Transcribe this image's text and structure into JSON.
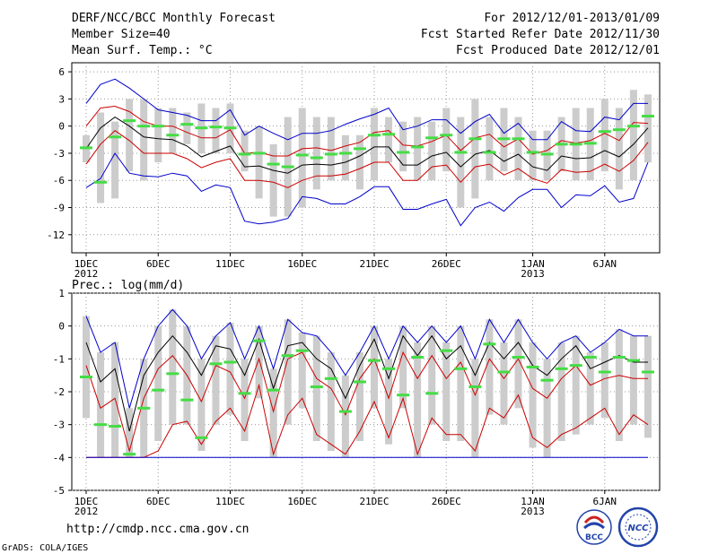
{
  "header": {
    "title": "DERF/NCC/BCC Monthly Forecast",
    "member_size": "Member Size=40",
    "variable": "Mean Surf. Temp.: °C",
    "period": "For 2012/12/01-2013/01/09",
    "start_ref": "Fcst Started Refer Date 2012/11/30",
    "produced": "Fcst Produced Date 2012/12/01"
  },
  "footer": {
    "url": "http://cmdp.ncc.cma.gov.cn",
    "grads": "GrADS: COLA/IGES",
    "logo_bcc": "BCC",
    "logo_ncc": "NCC"
  },
  "x_axis": {
    "ticks": [
      {
        "day": 1,
        "label": "1DEC",
        "sub": "2012"
      },
      {
        "day": 6,
        "label": "6DEC",
        "sub": ""
      },
      {
        "day": 11,
        "label": "11DEC",
        "sub": ""
      },
      {
        "day": 16,
        "label": "16DEC",
        "sub": ""
      },
      {
        "day": 21,
        "label": "21DEC",
        "sub": ""
      },
      {
        "day": 26,
        "label": "26DEC",
        "sub": ""
      },
      {
        "day": 32,
        "label": "1JAN",
        "sub": "2013"
      },
      {
        "day": 37,
        "label": "6JAN",
        "sub": ""
      }
    ]
  },
  "chart_data": [
    {
      "type": "line",
      "title": "Mean Surf. Temp.: °C",
      "ylabel": "°C",
      "ylim": [
        -14,
        7
      ],
      "yticks": [
        6,
        3,
        0,
        -3,
        -6,
        -9,
        -12
      ],
      "grid": true,
      "x": [
        1,
        2,
        3,
        4,
        5,
        6,
        7,
        8,
        9,
        10,
        11,
        12,
        13,
        14,
        15,
        16,
        17,
        18,
        19,
        20,
        21,
        22,
        23,
        24,
        25,
        26,
        27,
        28,
        29,
        30,
        31,
        32,
        33,
        34,
        35,
        36,
        37,
        38,
        39,
        40
      ],
      "series": [
        {
          "name": "ensemble max",
          "color": "#0000cc",
          "values": [
            2.5,
            4.6,
            5.2,
            4.2,
            3,
            1.8,
            1.5,
            1.2,
            0.6,
            0.6,
            1.8,
            -1,
            0,
            -0.8,
            -1.5,
            -0.8,
            -0.8,
            -0.5,
            0.2,
            0.8,
            1.3,
            2,
            -0.4,
            0,
            0.7,
            0.7,
            -0.8,
            0.5,
            1.3,
            -0.8,
            0.3,
            -1.5,
            -1.5,
            0.5,
            -0.5,
            -0.6,
            1,
            0.7,
            2.5,
            2.5
          ]
        },
        {
          "name": "upper spread",
          "color": "#cc0000",
          "values": [
            0,
            2,
            2.2,
            1.6,
            0.5,
            0,
            0,
            -0.7,
            -1.3,
            -1.3,
            -0.4,
            -3,
            -2.9,
            -3.3,
            -3.3,
            -2.5,
            -2.4,
            -2.7,
            -2.2,
            -1.8,
            -0.7,
            -0.5,
            -2.1,
            -2.2,
            -1.7,
            -1,
            -2.7,
            -1.3,
            -0.9,
            -2.3,
            -1.4,
            -3.1,
            -2.7,
            -1.6,
            -1.9,
            -1.6,
            -0.8,
            -1.6,
            0.4,
            0.3
          ]
        },
        {
          "name": "ensemble mean",
          "color": "#000000",
          "values": [
            -2.5,
            -0.2,
            1,
            0,
            -1.2,
            -1.4,
            -1.5,
            -2.2,
            -3.4,
            -2.8,
            -2.2,
            -4.5,
            -4.4,
            -4.9,
            -5.2,
            -4.3,
            -4.2,
            -4.3,
            -4,
            -3.3,
            -2.3,
            -2.3,
            -4.3,
            -4.3,
            -3.3,
            -2.9,
            -4.5,
            -3.1,
            -2.7,
            -3.9,
            -3.1,
            -4.5,
            -4.9,
            -3.3,
            -3.6,
            -3.5,
            -2.7,
            -3.4,
            -2,
            -0.2
          ]
        },
        {
          "name": "lower spread",
          "color": "#cc0000",
          "values": [
            -4.2,
            -2,
            -0.5,
            -1.6,
            -3,
            -3,
            -3,
            -3.6,
            -4.6,
            -4,
            -3.6,
            -6,
            -6,
            -6.2,
            -6.8,
            -6,
            -5.5,
            -5.5,
            -5.3,
            -4.7,
            -4,
            -4,
            -6,
            -6,
            -4.5,
            -4.3,
            -6.2,
            -4.5,
            -4.2,
            -5.4,
            -4.7,
            -5.8,
            -6.3,
            -4.8,
            -5.1,
            -5,
            -4.2,
            -5,
            -3.8,
            -1.8
          ]
        },
        {
          "name": "ensemble min",
          "color": "#0000cc",
          "values": [
            -6.8,
            -5.8,
            -3,
            -5.2,
            -5.5,
            -5.6,
            -5.2,
            -5.5,
            -7.2,
            -6.5,
            -6.8,
            -10.5,
            -10.8,
            -10.6,
            -10.2,
            -7.8,
            -8,
            -8.6,
            -8.6,
            -7.8,
            -6.7,
            -6.7,
            -9.2,
            -9.2,
            -8.6,
            -8.1,
            -11,
            -9,
            -8.4,
            -9.4,
            -7.9,
            -7,
            -7,
            -9,
            -7.6,
            -7.7,
            -6.6,
            -8.4,
            -8,
            -4
          ]
        }
      ],
      "bars": {
        "name": "member range",
        "color": "#cccccc",
        "low": [
          -4,
          -8.5,
          -8,
          -5,
          -6,
          -4,
          -3,
          -2,
          -3,
          -3,
          -3,
          -5,
          -8,
          -10,
          -10,
          -9,
          -7,
          -6,
          -6,
          -7,
          -6,
          -4,
          -5,
          -6,
          -6,
          -5,
          -9,
          -8,
          -6,
          -5,
          -6,
          -6,
          -6,
          -5,
          -6,
          -6,
          -5,
          -7,
          -6,
          -4
        ],
        "high": [
          -1,
          1.5,
          0.5,
          3,
          3,
          2,
          2,
          1.5,
          2.5,
          2,
          2.5,
          -0.5,
          0,
          -2,
          1,
          2,
          1,
          1,
          -1,
          -1,
          2,
          1,
          0.5,
          1,
          0.5,
          2,
          1,
          3,
          1,
          2,
          1,
          -0.5,
          -0.5,
          1,
          2,
          2,
          3,
          2,
          4,
          3.5
        ]
      },
      "markers": {
        "name": "observation",
        "color": "#44dd44",
        "values": [
          -2.4,
          -6.2,
          -1.2,
          0.6,
          0,
          0,
          -1,
          0.2,
          -0.2,
          -0.1,
          -0.2,
          -3.1,
          -3,
          -4.2,
          -4.5,
          -3.2,
          -3.5,
          -3.1,
          -3,
          -2.5,
          -1,
          -0.9,
          -2.9,
          -2.3,
          -1.3,
          -1,
          -2.9,
          -1.4,
          -2.9,
          -1.4,
          -1.4,
          -2.9,
          -3.1,
          -2,
          -2,
          -1.9,
          -0.6,
          -0.4,
          0,
          1.1
        ]
      }
    },
    {
      "type": "line",
      "title": "Prec.: log(mm/d)",
      "ylabel": "log(mm/d)",
      "ylim": [
        -5,
        1
      ],
      "yticks": [
        1,
        0,
        -1,
        -2,
        -3,
        -4,
        -5
      ],
      "grid": true,
      "x": [
        1,
        2,
        3,
        4,
        5,
        6,
        7,
        8,
        9,
        10,
        11,
        12,
        13,
        14,
        15,
        16,
        17,
        18,
        19,
        20,
        21,
        22,
        23,
        24,
        25,
        26,
        27,
        28,
        29,
        30,
        31,
        32,
        33,
        34,
        35,
        36,
        37,
        38,
        39,
        40
      ],
      "series": [
        {
          "name": "ensemble max",
          "color": "#0000cc",
          "values": [
            0.3,
            -0.8,
            -0.5,
            -2.5,
            -1,
            0,
            0.5,
            0,
            -1,
            -0.3,
            0.1,
            -1,
            0,
            -1.3,
            0.2,
            -0.2,
            -0.3,
            -0.8,
            -1.5,
            -0.8,
            0,
            -1,
            0,
            -0.5,
            0,
            -0.5,
            0,
            -1,
            0.2,
            -0.5,
            0.2,
            -0.5,
            -1,
            -0.5,
            -0.3,
            -0.8,
            -0.5,
            -0.1,
            -0.3,
            -0.3
          ]
        },
        {
          "name": "upper spread",
          "color": "#000000",
          "values": [
            -0.5,
            -1.7,
            -1.3,
            -3.2,
            -1.5,
            -0.8,
            -0.3,
            -0.8,
            -1.5,
            -0.6,
            -0.7,
            -1.5,
            -0.4,
            -1.9,
            -0.6,
            -0.5,
            -1,
            -1.3,
            -2.2,
            -1.2,
            -0.4,
            -1.6,
            -0.3,
            -0.9,
            -0.3,
            -1,
            -0.6,
            -1.5,
            -0.5,
            -1,
            -0.5,
            -1.2,
            -1.5,
            -1,
            -0.6,
            -1.3,
            -1.1,
            -0.9,
            -1.1,
            -1.1
          ]
        },
        {
          "name": "ensemble mean",
          "color": "#cc0000",
          "values": [
            -1.2,
            -2.5,
            -2.2,
            -3.8,
            -2.2,
            -1.3,
            -0.9,
            -1.5,
            -2.3,
            -1.2,
            -1.4,
            -2.2,
            -1,
            -2.6,
            -1,
            -0.8,
            -1.6,
            -1.9,
            -2.7,
            -1.6,
            -1,
            -2.2,
            -0.8,
            -1.6,
            -0.9,
            -1.6,
            -1.1,
            -2.1,
            -1,
            -1.6,
            -1,
            -1.9,
            -2.2,
            -1.6,
            -1.2,
            -1.8,
            -1.6,
            -1.5,
            -1.6,
            -1.6
          ]
        },
        {
          "name": "lower spread",
          "color": "#cc0000",
          "values": [
            -4,
            -4,
            -4,
            -4,
            -4,
            -3.8,
            -3,
            -2.9,
            -3.6,
            -2.9,
            -2.5,
            -3.2,
            -1.8,
            -3.9,
            -2.7,
            -2.2,
            -3.3,
            -3.6,
            -3.9,
            -3.2,
            -2.3,
            -3.4,
            -2.2,
            -3.9,
            -2.8,
            -3.3,
            -3.3,
            -3.8,
            -2.5,
            -2.8,
            -2.1,
            -3.4,
            -3.7,
            -3.3,
            -3.1,
            -2.8,
            -2.5,
            -3.3,
            -2.7,
            -3
          ]
        },
        {
          "name": "ensemble min",
          "color": "#0000cc",
          "values": [
            -4,
            -4,
            -4,
            -4,
            -4,
            -4,
            -4,
            -4,
            -4,
            -4,
            -4,
            -4,
            -4,
            -4,
            -4,
            -4,
            -4,
            -4,
            -4,
            -4,
            -4,
            -4,
            -4,
            -4,
            -4,
            -4,
            -4,
            -4,
            -4,
            -4,
            -4,
            -4,
            -4,
            -4,
            -4,
            -4,
            -4,
            -4,
            -4,
            -4
          ]
        }
      ],
      "bars": {
        "name": "member range",
        "color": "#cccccc",
        "low": [
          -2.8,
          -4,
          -4,
          -4,
          -4,
          -3.5,
          -3,
          -3,
          -3.8,
          -3,
          -2.7,
          -3.5,
          -2.2,
          -4,
          -3,
          -2.5,
          -3.5,
          -3.8,
          -4,
          -3.5,
          -2.5,
          -3.6,
          -2.5,
          -4,
          -3,
          -3.5,
          -3.5,
          -4,
          -2.7,
          -3,
          -2.5,
          -3.7,
          -4,
          -3.5,
          -3.3,
          -3,
          -2.8,
          -3.5,
          -3,
          -3.4
        ]
      },
      "markers": {
        "name": "observation",
        "color": "#44dd44",
        "values": [
          -1.55,
          -3,
          -3.05,
          -3.9,
          -2.5,
          -1.95,
          -1.45,
          -2.25,
          -3.4,
          -1.15,
          -1.1,
          -2.05,
          -0.45,
          -1.95,
          -0.9,
          -0.75,
          -1.85,
          -1.6,
          -2.6,
          -1.7,
          -1.05,
          -1.3,
          -2.1,
          -0.95,
          -2.05,
          -0.75,
          -1.3,
          -1.85,
          -0.55,
          -1.4,
          -0.95,
          -1.25,
          -1.65,
          -1.3,
          -1.2,
          -0.95,
          -1.4,
          -0.95,
          -1.05,
          -1.4
        ]
      }
    }
  ]
}
